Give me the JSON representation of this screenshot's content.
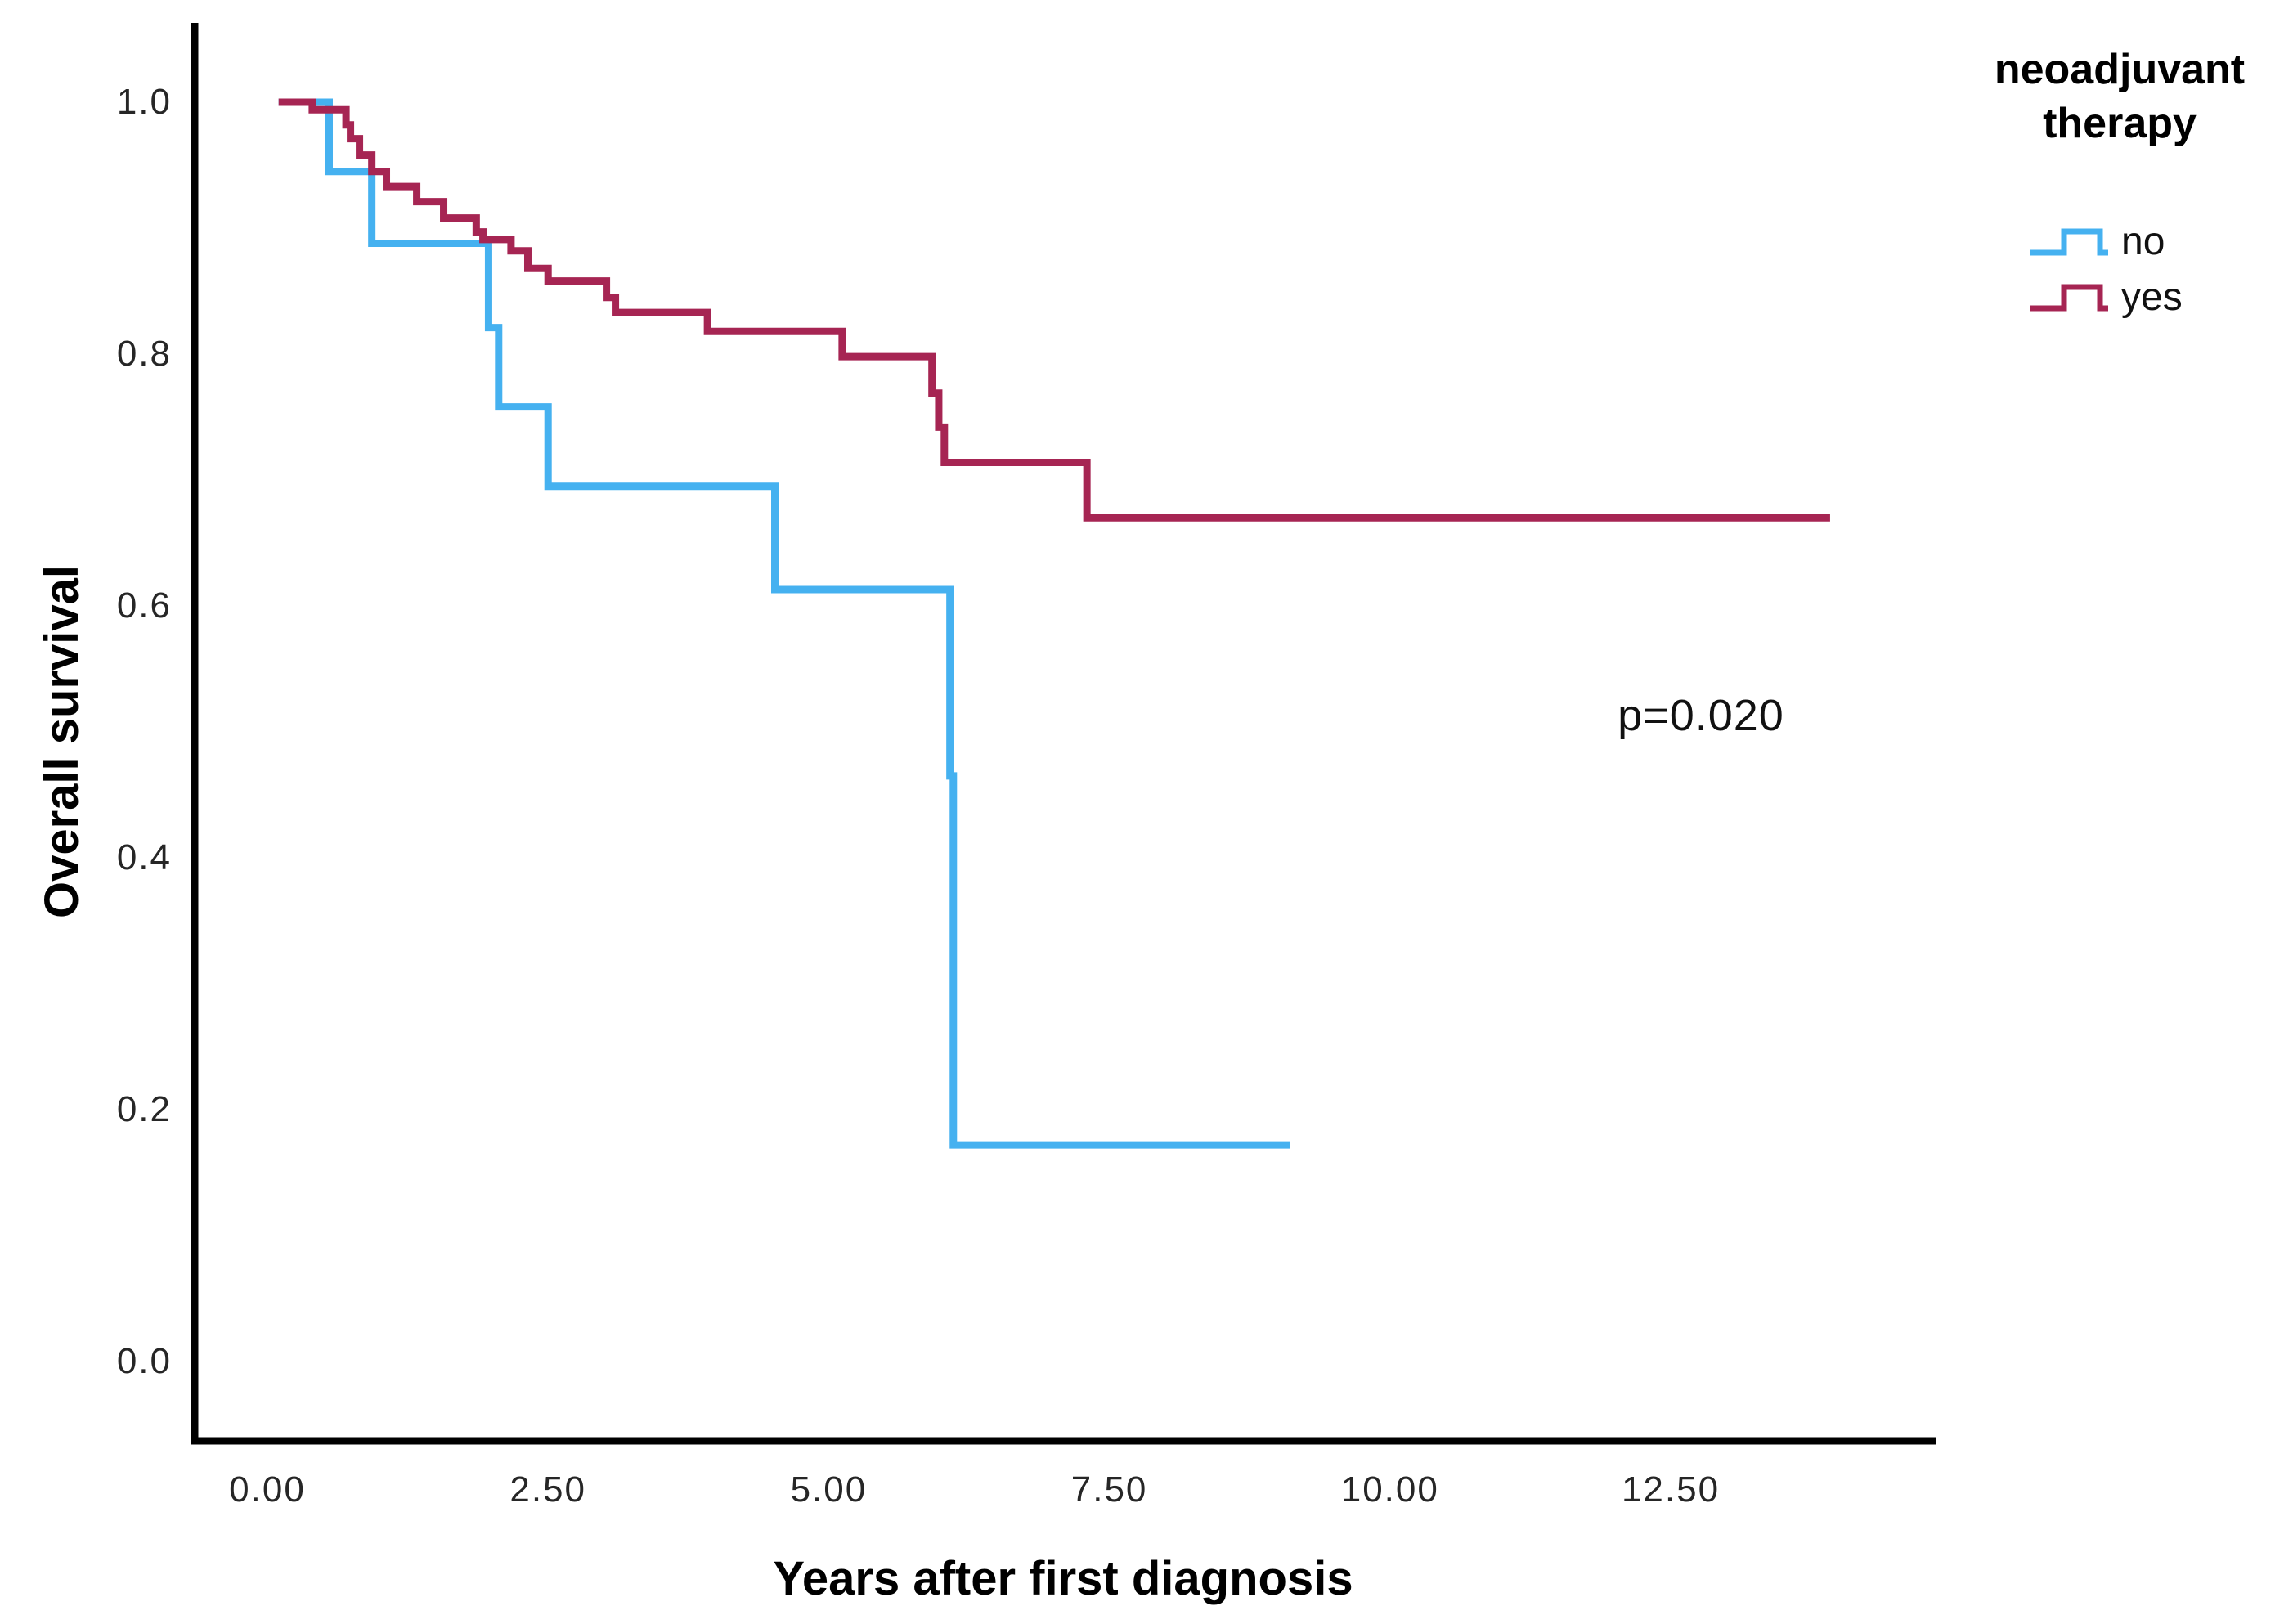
{
  "chart_data": {
    "type": "line",
    "subtype": "kaplan-meier-step-plot",
    "title": "",
    "xlabel": "Years after first diagnosis",
    "ylabel": "Overall survival",
    "annotation": "p=0.020",
    "legend_title": "neoadjuvant therapy",
    "legend_position": "outside-top-right",
    "grid": false,
    "xlim": [
      -0.68,
      14.83
    ],
    "ylim": [
      -0.06,
      1.06
    ],
    "x_ticks": [
      "0.00",
      "2.50",
      "5.00",
      "7.50",
      "10.00",
      "12.50"
    ],
    "x_tick_values": [
      0,
      2.5,
      5,
      7.5,
      10,
      12.5
    ],
    "y_ticks": [
      "1.0",
      "0.8",
      "0.6",
      "0.4",
      "0.2",
      "0.0"
    ],
    "y_tick_values": [
      1.0,
      0.8,
      0.6,
      0.4,
      0.2,
      0.0
    ],
    "series": [
      {
        "name": "no",
        "color": "#45b1f0",
        "start_x": 0.1,
        "end_x": 9.11,
        "drop_x": [
          0.55,
          0.93,
          1.97,
          2.06,
          2.5,
          4.52,
          6.08,
          6.11
        ],
        "levels": [
          1.0,
          0.945,
          0.888,
          0.821,
          0.758,
          0.695,
          0.613,
          0.465,
          0.172
        ]
      },
      {
        "name": "yes",
        "color": "#a62553",
        "start_x": 0.1,
        "end_x": 13.92,
        "drop_x": [
          0.4,
          0.7,
          0.74,
          0.82,
          0.93,
          1.06,
          1.33,
          1.57,
          1.86,
          1.92,
          2.17,
          2.32,
          2.5,
          3.02,
          3.1,
          3.92,
          5.12,
          5.92,
          5.98,
          6.03,
          7.3
        ],
        "levels": [
          1.0,
          0.994,
          0.982,
          0.971,
          0.958,
          0.945,
          0.933,
          0.921,
          0.908,
          0.897,
          0.891,
          0.882,
          0.868,
          0.858,
          0.845,
          0.833,
          0.818,
          0.798,
          0.769,
          0.742,
          0.714,
          0.67
        ]
      }
    ]
  },
  "labels": {
    "y_axis_title": "Overall survival",
    "x_axis_title": "Years after first diagnosis",
    "legend_title_line1": "neoadjuvant",
    "legend_title_line2": "therapy"
  },
  "colors": {
    "axis": "#000000",
    "tick_text": "#262626",
    "series_no": "#45b1f0",
    "series_yes": "#a62553"
  }
}
